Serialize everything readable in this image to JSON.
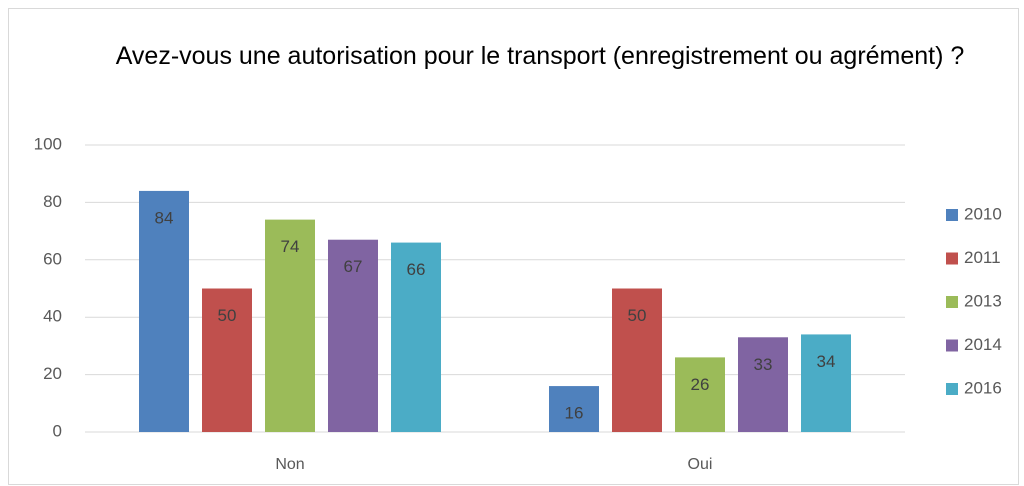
{
  "chart_data": {
    "type": "bar",
    "title": "Avez-vous une autorisation pour le transport (enregistrement ou agrément) ?",
    "categories": [
      "Non",
      "Oui"
    ],
    "series": [
      {
        "name": "2010",
        "color": "#4f81bd",
        "values": [
          84,
          16
        ]
      },
      {
        "name": "2011",
        "color": "#c0504d",
        "values": [
          50,
          50
        ]
      },
      {
        "name": "2013",
        "color": "#9bbb59",
        "values": [
          74,
          26
        ]
      },
      {
        "name": "2014",
        "color": "#8064a2",
        "values": [
          67,
          33
        ]
      },
      {
        "name": "2016",
        "color": "#4bacc6",
        "values": [
          66,
          34
        ]
      }
    ],
    "ylim": [
      0,
      100
    ],
    "yticks": [
      0,
      20,
      40,
      60,
      80,
      100
    ],
    "grid": true,
    "legend": "right"
  }
}
